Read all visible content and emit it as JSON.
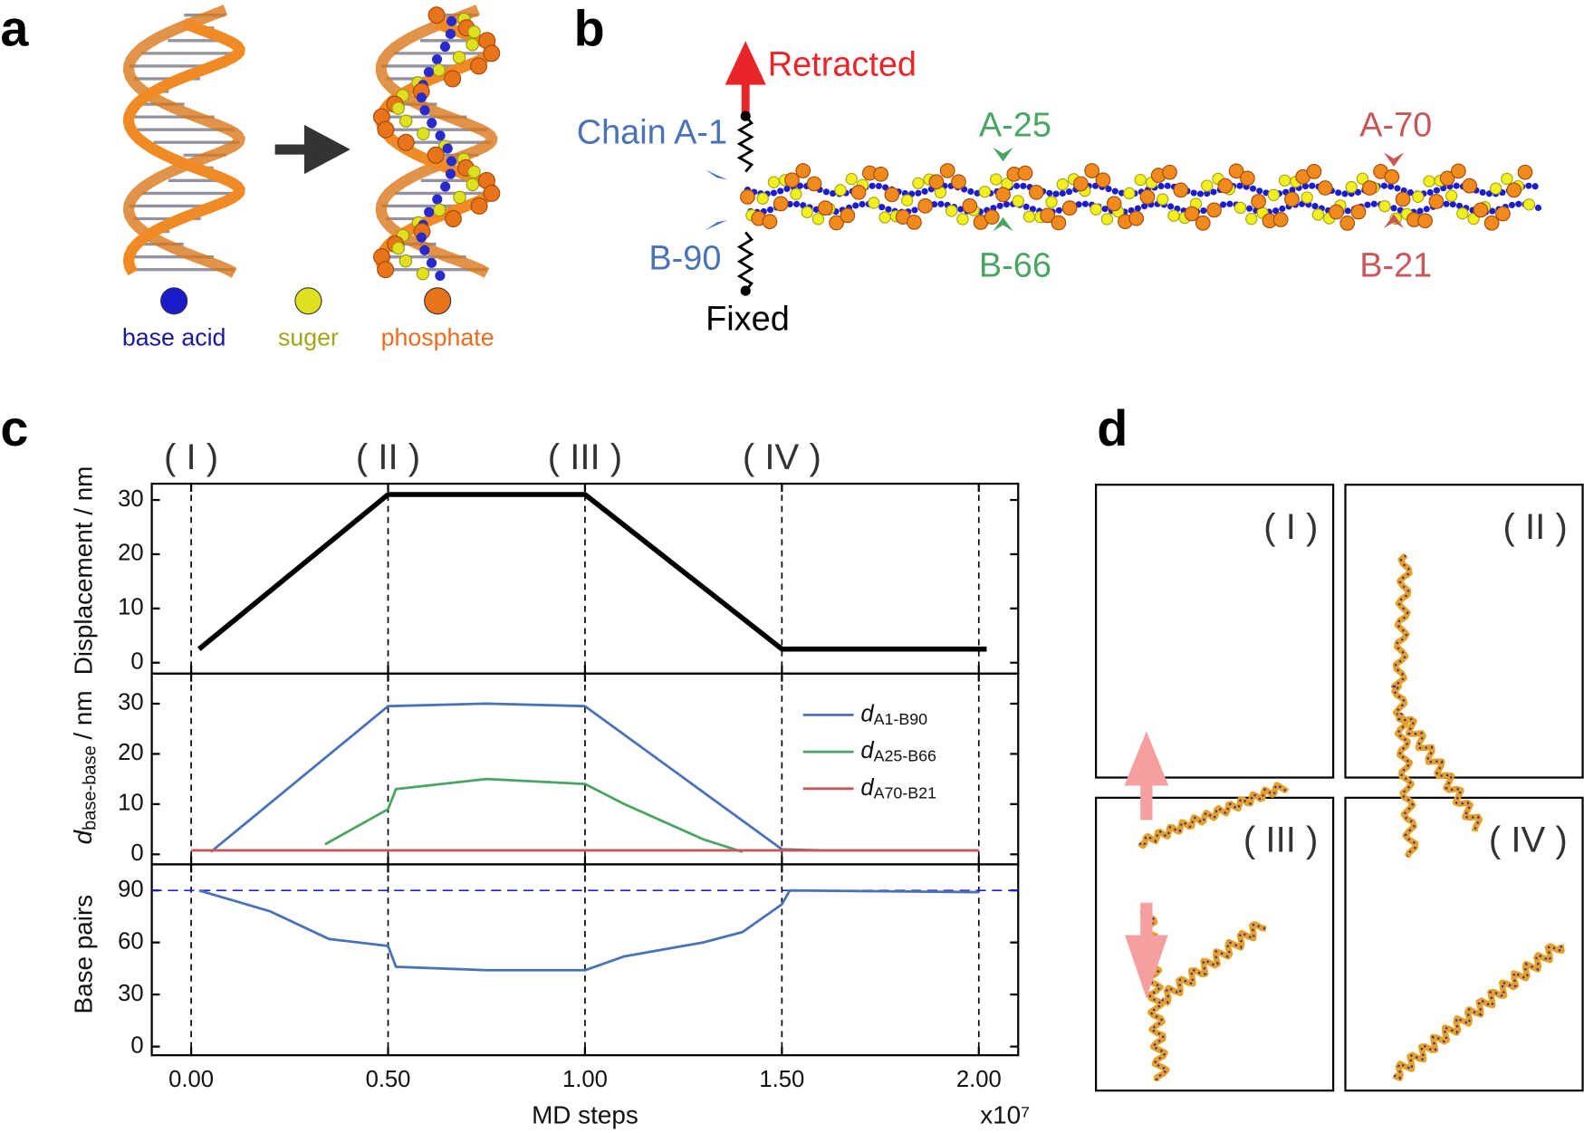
{
  "panel_labels": {
    "a": "a",
    "b": "b",
    "c": "c",
    "d": "d"
  },
  "panel_a": {
    "legend": [
      {
        "label": "base acid",
        "color": "#1c1ccc",
        "text_color": "#1a1a9c"
      },
      {
        "label": "suger",
        "color": "#e0e020",
        "text_color": "#a4a41c"
      },
      {
        "label": "phosphate",
        "color": "#e8731a",
        "text_color": "#ee6a1f"
      }
    ]
  },
  "panel_b": {
    "retracted": "Retracted",
    "fixed": "Fixed",
    "chain_start": "Chain A-1",
    "chain_end": "B-90",
    "mid_top": "A-25",
    "mid_bottom": "B-66",
    "far_top": "A-70",
    "far_bottom": "B-21"
  },
  "phases": [
    "( I )",
    "( II )",
    "( III )",
    "( IV )"
  ],
  "phase_lines": [
    0,
    0.5,
    1,
    1.5,
    2
  ],
  "x_axis": {
    "xlim": [
      -0.1,
      2.1
    ],
    "xticks": [
      {
        "value": 0,
        "label": "0.00"
      },
      {
        "value": 0.5,
        "label": "0.50"
      },
      {
        "value": 1,
        "label": "1.00"
      },
      {
        "value": 1.5,
        "label": "1.50"
      },
      {
        "value": 2,
        "label": "2.00"
      }
    ],
    "label": "MD steps",
    "multiplier": "x10⁷"
  },
  "chart_data": [
    {
      "type": "line",
      "ylabel": "Displacement / nm",
      "ylim": [
        -2,
        33
      ],
      "yticks": [
        0,
        10,
        20,
        30
      ],
      "series": [
        {
          "color": "#000000",
          "x": [
            0.02,
            0.5,
            1,
            1.5,
            2.02
          ],
          "values": [
            2.5,
            31,
            31,
            2.5,
            2.5
          ]
        }
      ]
    },
    {
      "type": "line",
      "ylabel": [
        "d",
        "base-base",
        "/ nm"
      ],
      "legend_symbol": "d",
      "ylim": [
        -2,
        36
      ],
      "yticks": [
        0,
        10,
        20,
        30
      ],
      "series": [
        {
          "name": "A1-B90",
          "color": "#4a72b5",
          "x": [
            0.05,
            0.5,
            0.75,
            1,
            1.5,
            1.6,
            2
          ],
          "values": [
            0.5,
            29.5,
            30,
            29.5,
            1,
            0.8,
            0.8
          ]
        },
        {
          "name": "A25-B66",
          "color": "#4aa564",
          "x": [
            0.34,
            0.5,
            0.52,
            0.75,
            1,
            1.1,
            1.3,
            1.4
          ],
          "values": [
            2,
            9,
            13,
            15,
            14,
            10,
            3,
            0.5
          ]
        },
        {
          "name": "A70-B21",
          "color": "#c8575a",
          "x": [
            0,
            2
          ],
          "values": [
            0.8,
            0.8
          ]
        }
      ]
    },
    {
      "type": "line",
      "ylabel": "Base pairs",
      "ylim": [
        -5,
        105
      ],
      "yticks": [
        0,
        30,
        60,
        90
      ],
      "hline": {
        "value": 90,
        "color": "#2020dd"
      },
      "series": [
        {
          "color": "#4a72b5",
          "x": [
            0.02,
            0.2,
            0.35,
            0.5,
            0.52,
            0.75,
            1,
            1.1,
            1.3,
            1.4,
            1.5,
            1.52,
            2
          ],
          "values": [
            90,
            78,
            62,
            58,
            46,
            44,
            44,
            52,
            60,
            66,
            82,
            90,
            89
          ]
        }
      ]
    }
  ]
}
